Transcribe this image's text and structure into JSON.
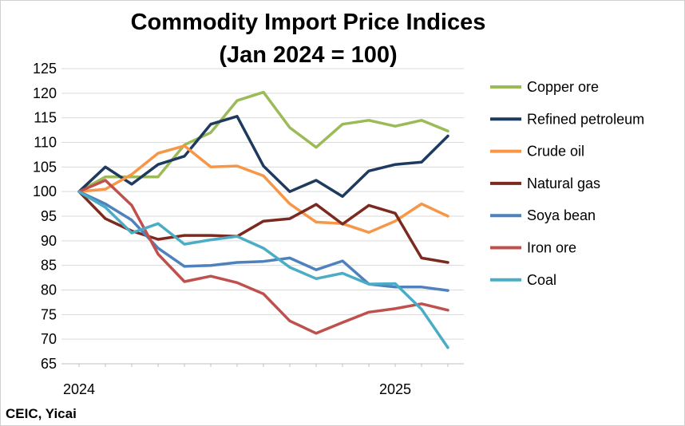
{
  "chart_data": {
    "type": "line",
    "title": "Commodity Import Price Indices",
    "subtitle": "(Jan 2024 = 100)",
    "source": "CEIC, Yicai",
    "xlabel": "",
    "ylabel": "",
    "ylim": [
      65,
      125
    ],
    "yticks": [
      65,
      70,
      75,
      80,
      85,
      90,
      95,
      100,
      105,
      110,
      115,
      120,
      125
    ],
    "x_tick_labels": [
      {
        "label": "2024",
        "index": 0
      },
      {
        "label": "2025",
        "index": 12
      }
    ],
    "grid": true,
    "legend_position": "right",
    "series": [
      {
        "name": "Copper ore",
        "color": "#9bbb59",
        "values": [
          100,
          103,
          103,
          103,
          109.5,
          112,
          118.5,
          120.2,
          113,
          109,
          113.7,
          114.5,
          113.3,
          114.5,
          112.3
        ]
      },
      {
        "name": "Refined petroleum",
        "color": "#1f3a5f",
        "values": [
          100,
          105,
          101.5,
          105.5,
          107.2,
          113.7,
          115.3,
          105.2,
          100,
          102.3,
          99,
          104.2,
          105.5,
          106,
          111.3
        ]
      },
      {
        "name": "Crude oil",
        "color": "#f79646",
        "values": [
          100,
          100.5,
          103.5,
          107.8,
          109.3,
          105,
          105.2,
          103.2,
          97.5,
          93.8,
          93.5,
          91.7,
          94,
          97.5,
          95
        ]
      },
      {
        "name": "Natural gas",
        "color": "#7b2a20",
        "values": [
          100,
          94.5,
          92,
          90.3,
          91.1,
          91.1,
          90.9,
          94,
          94.5,
          97.4,
          93.4,
          97.2,
          95.6,
          86.5,
          85.6
        ]
      },
      {
        "name": "Soya bean",
        "color": "#4f81bd",
        "values": [
          100,
          97.5,
          94.2,
          88.5,
          84.8,
          85,
          85.6,
          85.8,
          86.5,
          84.1,
          85.9,
          81.2,
          80.6,
          80.6,
          79.9
        ]
      },
      {
        "name": "Iron ore",
        "color": "#c0504d",
        "values": [
          100,
          102.3,
          97.2,
          87.3,
          81.7,
          82.8,
          81.5,
          79.2,
          73.7,
          71.2,
          73.4,
          75.5,
          76.2,
          77.2,
          75.9
        ]
      },
      {
        "name": "Coal",
        "color": "#4bacc6",
        "values": [
          100,
          96.8,
          91.6,
          93.5,
          89.3,
          90.2,
          90.9,
          88.5,
          84.6,
          82.3,
          83.4,
          81.2,
          81.3,
          76.1,
          68.3
        ]
      }
    ]
  }
}
